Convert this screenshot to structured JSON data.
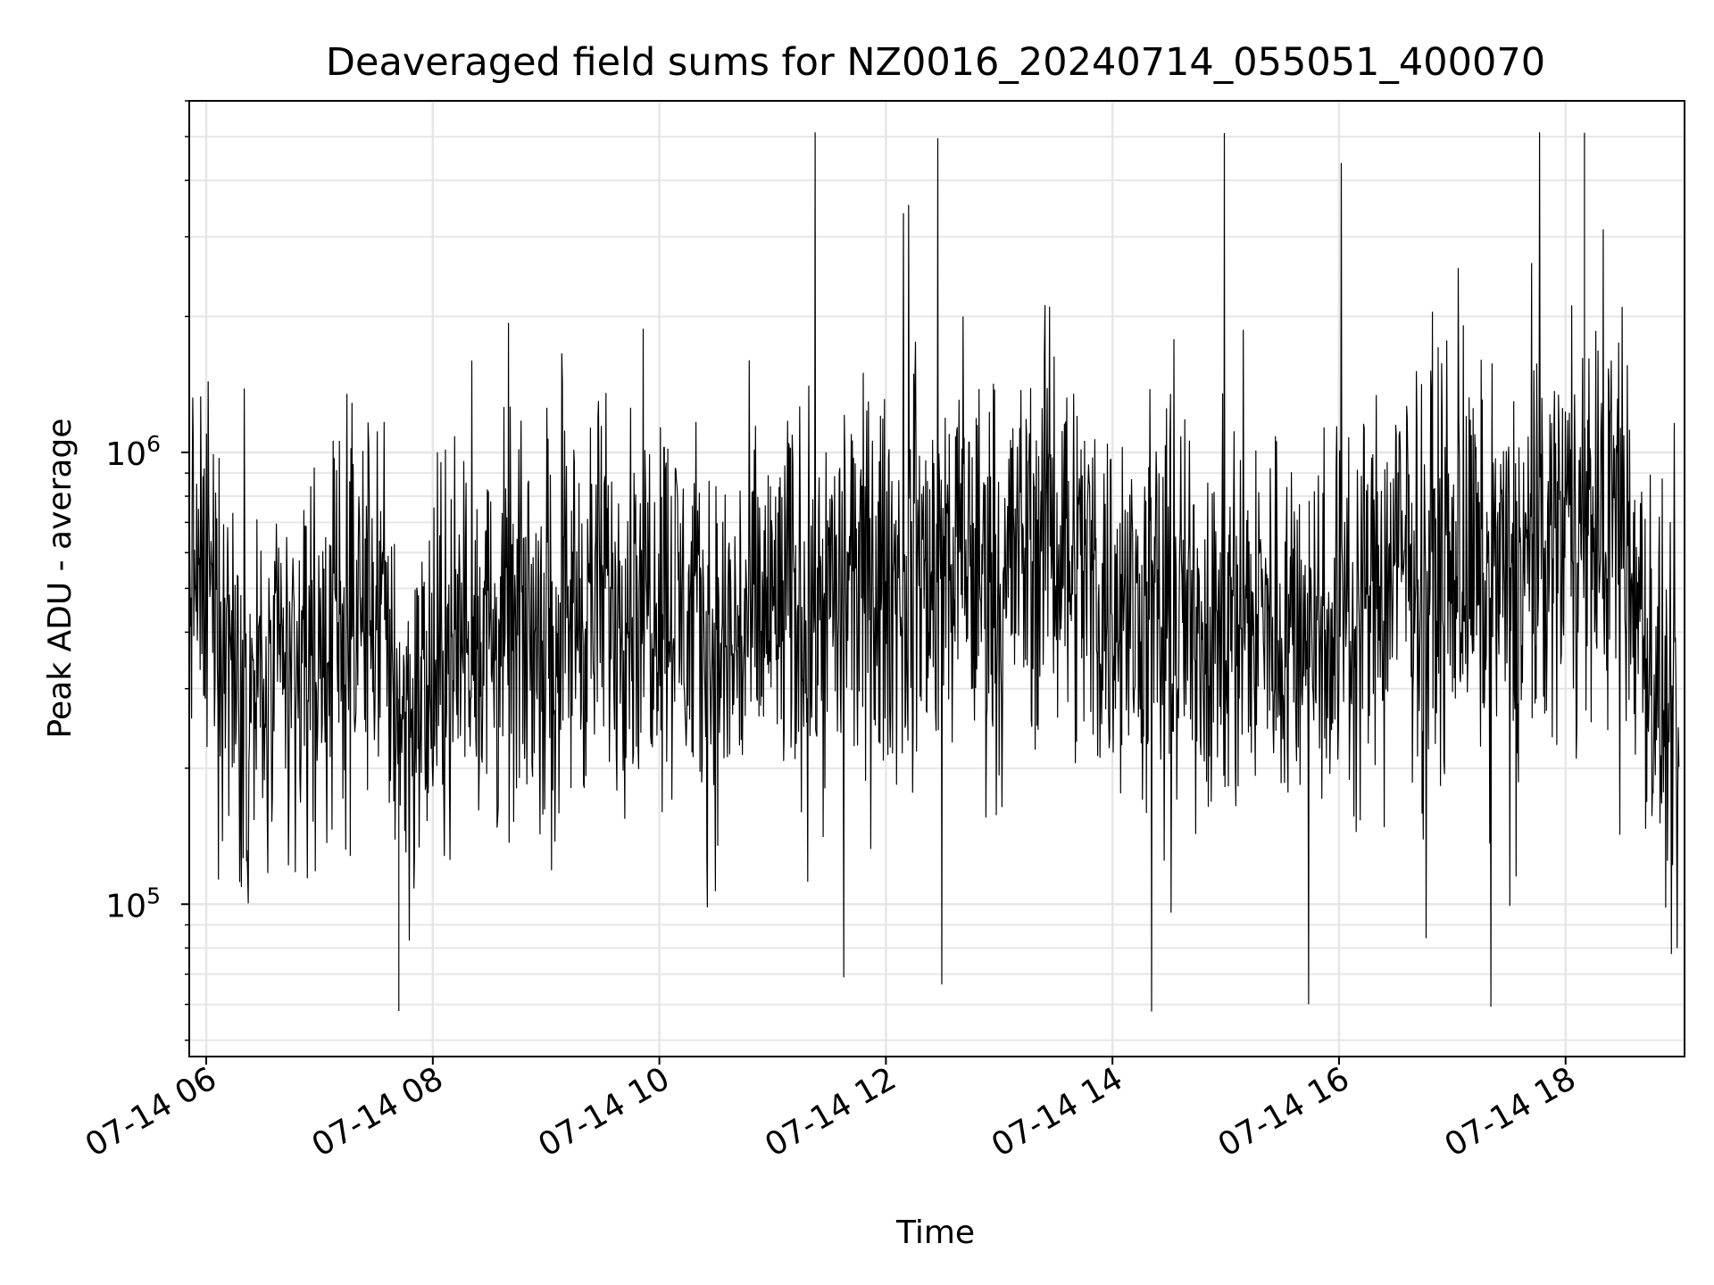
{
  "chart_data": {
    "type": "line",
    "title": "Deaveraged field sums for NZ0016_20240714_055051_400070",
    "xlabel": "Time",
    "ylabel": "Peak ADU - average",
    "y_scale": "log",
    "ylim": [
      46000,
      6000000
    ],
    "xlim": [
      "2024-07-14 05:51",
      "2024-07-14 19:03"
    ],
    "x_ticks": [
      "07-14 06",
      "07-14 08",
      "07-14 10",
      "07-14 12",
      "07-14 14",
      "07-14 16",
      "07-14 18"
    ],
    "y_ticks": [
      {
        "base": "10",
        "exp": "5",
        "value": 100000
      },
      {
        "base": "10",
        "exp": "6",
        "value": 1000000
      }
    ],
    "grid": true,
    "line_color": "#000000",
    "grid_color": "#e6e6e6",
    "series": [
      {
        "x": [
          "2024-07-14 05:51",
          "2024-07-14 06:00",
          "2024-07-14 06:30",
          "2024-07-14 07:00",
          "2024-07-14 07:30",
          "2024-07-14 07:45",
          "2024-07-14 08:00",
          "2024-07-14 08:20",
          "2024-07-14 08:30",
          "2024-07-14 09:00",
          "2024-07-14 09:30",
          "2024-07-14 10:00",
          "2024-07-14 10:30",
          "2024-07-14 11:00",
          "2024-07-14 11:30",
          "2024-07-14 12:00",
          "2024-07-14 12:30",
          "2024-07-14 13:00",
          "2024-07-14 13:30",
          "2024-07-14 14:00",
          "2024-07-14 14:30",
          "2024-07-14 15:00",
          "2024-07-14 15:30",
          "2024-07-14 16:00",
          "2024-07-14 16:30",
          "2024-07-14 17:00",
          "2024-07-14 17:30",
          "2024-07-14 18:00",
          "2024-07-14 18:30",
          "2024-07-14 19:00"
        ],
        "y": [
          600000,
          450000,
          280000,
          360000,
          480000,
          250000,
          300000,
          420000,
          380000,
          420000,
          480000,
          520000,
          350000,
          450000,
          470000,
          500000,
          560000,
          550000,
          700000,
          450000,
          420000,
          430000,
          420000,
          430000,
          560000,
          560000,
          520000,
          700000,
          650000,
          180000
        ]
      }
    ],
    "extremes": {
      "min": {
        "x": "2024-07-14 07:42",
        "y": 58000
      },
      "max": {
        "x": "2024-07-14 18:10",
        "y": 5100000
      }
    }
  }
}
